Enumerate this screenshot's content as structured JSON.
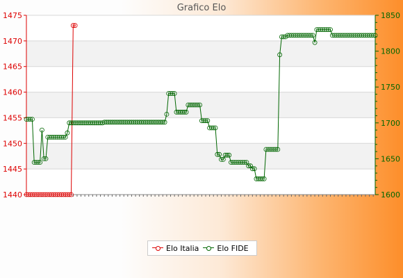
{
  "chart_data": {
    "type": "line",
    "title": "Grafico Elo",
    "xlabel": "",
    "ylabel": "",
    "ylim_left": [
      1440,
      1475
    ],
    "yticks_left": [
      1440,
      1445,
      1450,
      1455,
      1460,
      1465,
      1470,
      1475
    ],
    "ylim_right": [
      1600,
      1850
    ],
    "yticks_right": [
      1600,
      1650,
      1700,
      1750,
      1800,
      1850
    ],
    "grid": true,
    "legend": "bottom-center",
    "colors": {
      "italia": "#dd0000",
      "fide": "#006600"
    },
    "series": [
      {
        "name": "Elo Italia",
        "axis": "left",
        "values": [
          1440,
          1440,
          1440,
          1440,
          1440,
          1440,
          1440,
          1440,
          1440,
          1440,
          1440,
          1440,
          1440,
          1440,
          1440,
          1440,
          1440,
          1440,
          1440,
          1440,
          1440,
          1440,
          1440,
          1440,
          1473,
          1473
        ]
      },
      {
        "name": "Elo FIDE",
        "axis": "right",
        "values": [
          1705,
          1705,
          1705,
          1705,
          1645,
          1645,
          1645,
          1645,
          1690,
          1650,
          1650,
          1680,
          1680,
          1680,
          1680,
          1680,
          1680,
          1680,
          1680,
          1680,
          1680,
          1686,
          1700,
          1700,
          1700,
          1700,
          1700,
          1700,
          1700,
          1700,
          1700,
          1700,
          1700,
          1700,
          1700,
          1700,
          1700,
          1700,
          1700,
          1700,
          1701,
          1701,
          1701,
          1701,
          1701,
          1701,
          1701,
          1701,
          1701,
          1701,
          1701,
          1701,
          1701,
          1701,
          1701,
          1701,
          1701,
          1701,
          1701,
          1701,
          1701,
          1701,
          1701,
          1701,
          1701,
          1701,
          1701,
          1701,
          1701,
          1701,
          1701,
          1701,
          1712,
          1741,
          1741,
          1741,
          1741,
          1715,
          1715,
          1715,
          1715,
          1715,
          1715,
          1725,
          1725,
          1725,
          1725,
          1725,
          1725,
          1725,
          1703,
          1703,
          1703,
          1703,
          1693,
          1693,
          1693,
          1693,
          1656,
          1656,
          1649,
          1649,
          1655,
          1655,
          1655,
          1645,
          1645,
          1645,
          1645,
          1645,
          1645,
          1645,
          1645,
          1645,
          1640,
          1640,
          1636,
          1636,
          1622,
          1622,
          1622,
          1622,
          1622,
          1663,
          1663,
          1663,
          1663,
          1663,
          1663,
          1663,
          1795,
          1820,
          1820,
          1820,
          1822,
          1822,
          1822,
          1822,
          1822,
          1822,
          1822,
          1822,
          1822,
          1822,
          1822,
          1822,
          1822,
          1822,
          1812,
          1830,
          1830,
          1830,
          1830,
          1830,
          1830,
          1830,
          1830,
          1822,
          1822,
          1822,
          1822,
          1822,
          1822,
          1822,
          1822,
          1822,
          1822,
          1822,
          1822,
          1822,
          1822,
          1822,
          1822,
          1822,
          1822,
          1822,
          1822,
          1822,
          1822,
          1822
        ]
      }
    ]
  }
}
